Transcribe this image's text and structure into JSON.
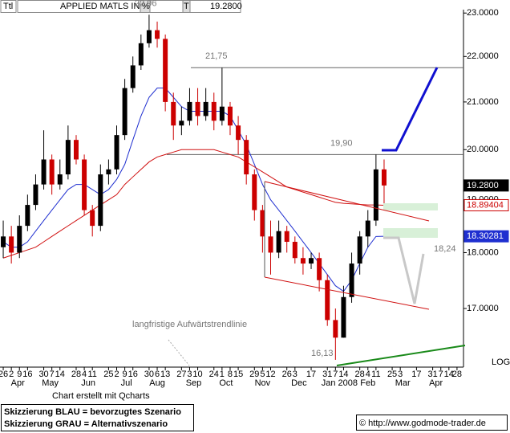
{
  "chart_data": {
    "type": "candlestick",
    "title": "APPLIED MATLS INC",
    "header_fields": [
      "Ttl",
      "%",
      "T"
    ],
    "x": [
      0,
      1,
      2,
      3,
      4,
      5,
      6,
      7,
      8,
      9,
      10,
      11,
      12,
      13,
      14,
      15,
      16,
      17,
      18,
      19,
      20,
      21,
      22,
      23,
      24,
      25,
      26,
      27,
      28,
      29,
      30,
      31,
      32,
      33,
      34,
      35,
      36,
      37,
      38,
      39,
      40,
      41,
      42,
      43,
      44,
      45,
      46,
      47
    ],
    "open": [
      18.1,
      18.3,
      18.0,
      18.5,
      18.9,
      19.3,
      19.8,
      19.3,
      19.5,
      20.2,
      19.8,
      18.8,
      18.5,
      19.5,
      19.6,
      20.3,
      21.3,
      21.8,
      22.3,
      22.6,
      22.4,
      21.0,
      20.5,
      20.6,
      21.0,
      20.7,
      21.0,
      20.6,
      20.9,
      20.5,
      20.2,
      19.5,
      18.8,
      18.3,
      18.0,
      18.4,
      18.2,
      17.9,
      17.8,
      17.9,
      17.5,
      16.8,
      16.5,
      17.2,
      17.8,
      18.3,
      18.6,
      19.6
    ],
    "high": [
      18.6,
      18.5,
      18.7,
      19.1,
      19.5,
      20.4,
      19.9,
      19.8,
      20.5,
      20.3,
      19.9,
      18.9,
      19.7,
      19.8,
      20.5,
      21.5,
      22.0,
      22.5,
      22.96,
      22.8,
      22.5,
      21.2,
      20.9,
      21.3,
      21.3,
      21.3,
      21.2,
      21.75,
      21.0,
      20.7,
      20.3,
      19.6,
      18.9,
      18.6,
      18.6,
      18.5,
      18.3,
      18.1,
      18.0,
      18.0,
      17.6,
      17.0,
      17.4,
      18.0,
      18.4,
      18.8,
      19.9,
      19.8
    ],
    "low": [
      17.9,
      17.8,
      17.9,
      18.4,
      18.8,
      19.2,
      19.1,
      19.2,
      19.4,
      19.7,
      18.7,
      18.3,
      18.4,
      19.3,
      19.5,
      20.2,
      21.2,
      21.7,
      22.2,
      22.2,
      20.8,
      20.2,
      20.3,
      20.5,
      20.5,
      20.6,
      20.4,
      20.5,
      20.3,
      19.9,
      19.3,
      18.6,
      18.0,
      17.6,
      17.9,
      18.0,
      17.8,
      17.6,
      17.7,
      17.3,
      16.7,
      16.13,
      16.5,
      17.1,
      17.6,
      18.1,
      18.5,
      18.9
    ],
    "close": [
      18.3,
      18.0,
      18.5,
      18.9,
      19.3,
      19.8,
      19.3,
      19.5,
      20.2,
      19.8,
      18.8,
      18.5,
      19.5,
      19.6,
      20.3,
      21.3,
      21.8,
      22.3,
      22.6,
      22.4,
      21.0,
      20.5,
      20.6,
      21.0,
      20.7,
      21.0,
      20.6,
      20.9,
      20.5,
      20.2,
      19.5,
      18.8,
      18.3,
      18.0,
      18.4,
      18.2,
      17.9,
      17.8,
      17.9,
      17.5,
      16.8,
      16.5,
      17.2,
      17.8,
      18.3,
      18.6,
      19.6,
      19.28
    ],
    "up_color": "#000000",
    "down_color": "#cc0000",
    "series": [
      {
        "color": "#1f2fd0",
        "values": [
          18.2,
          18.1,
          18.1,
          18.2,
          18.4,
          18.6,
          18.8,
          19.0,
          19.2,
          19.3,
          19.3,
          19.2,
          19.1,
          19.2,
          19.4,
          19.7,
          20.2,
          20.7,
          21.1,
          21.3,
          21.3,
          21.1,
          20.9,
          20.8,
          20.8,
          20.8,
          20.8,
          20.8,
          20.7,
          20.4,
          20.1,
          19.7,
          19.3,
          19.0,
          18.8,
          18.6,
          18.4,
          18.2,
          18.0,
          17.8,
          17.6,
          17.4,
          17.3,
          17.5,
          17.8,
          18.1,
          18.3,
          18.30281
        ]
      },
      {
        "color": "#d01010",
        "values": [
          17.9,
          17.95,
          18.0,
          18.05,
          18.1,
          18.2,
          18.3,
          18.4,
          18.5,
          18.6,
          18.7,
          18.8,
          18.9,
          19.0,
          19.1,
          19.3,
          19.45,
          19.6,
          19.75,
          19.85,
          19.9,
          19.95,
          20.0,
          20.0,
          20.0,
          20.0,
          20.0,
          19.95,
          19.9,
          19.85,
          19.75,
          19.65,
          19.55,
          19.45,
          19.35,
          19.25,
          19.2,
          19.15,
          19.1,
          19.05,
          19.0,
          18.95,
          18.93,
          18.92,
          18.91,
          18.9,
          18.9,
          18.89404
        ]
      }
    ],
    "price_labels": [
      {
        "value": 19.28,
        "label": "19.2800",
        "color": "#000000"
      },
      {
        "value": 18.89404,
        "label": "18.89404",
        "color": "#cc0000"
      },
      {
        "value": 18.30281,
        "label": "18.30281",
        "color": "#1f2fd0"
      }
    ],
    "levels": [
      {
        "value": 22.96,
        "label": "22,96"
      },
      {
        "value": 21.75,
        "label": "21,75"
      },
      {
        "value": 19.9,
        "label": "19,90"
      },
      {
        "value": 16.13,
        "label": "16,13"
      },
      {
        "value": 18.24,
        "label": "18,24"
      }
    ],
    "log_scale": true,
    "scale_label": "LOG",
    "ylim": [
      16.01,
      23.08
    ],
    "yticks": [
      {
        "value": 17,
        "label": "17.0000"
      },
      {
        "value": 18,
        "label": "18.0000"
      },
      {
        "value": 19,
        "label": "19.0000"
      },
      {
        "value": 20,
        "label": "20.0000"
      },
      {
        "value": 21,
        "label": "21.0000"
      },
      {
        "value": 22,
        "label": "22.0000"
      },
      {
        "value": 23,
        "label": "23.0000"
      }
    ],
    "xlim": [
      -0.4,
      56.8
    ],
    "xticks": [
      {
        "value": 0,
        "label": "26"
      },
      {
        "value": 1,
        "label": "2"
      },
      {
        "value": 2,
        "label": "9"
      },
      {
        "value": 3,
        "label": "16"
      },
      {
        "value": 5,
        "label": "30"
      },
      {
        "value": 6,
        "label": "7"
      },
      {
        "value": 7,
        "label": "14"
      },
      {
        "value": 9,
        "label": "28"
      },
      {
        "value": 10,
        "label": "4"
      },
      {
        "value": 11,
        "label": "11"
      },
      {
        "value": 13,
        "label": "25"
      },
      {
        "value": 14,
        "label": "2"
      },
      {
        "value": 15,
        "label": "9"
      },
      {
        "value": 16,
        "label": "16"
      },
      {
        "value": 18,
        "label": "30"
      },
      {
        "value": 19,
        "label": "6"
      },
      {
        "value": 20,
        "label": "13"
      },
      {
        "value": 22,
        "label": "27"
      },
      {
        "value": 23,
        "label": "3"
      },
      {
        "value": 24,
        "label": "10"
      },
      {
        "value": 26,
        "label": "24"
      },
      {
        "value": 27,
        "label": "1"
      },
      {
        "value": 28,
        "label": "8"
      },
      {
        "value": 29,
        "label": "15"
      },
      {
        "value": 31,
        "label": "29"
      },
      {
        "value": 32,
        "label": "5"
      },
      {
        "value": 33,
        "label": "12"
      },
      {
        "value": 35,
        "label": "26"
      },
      {
        "value": 36,
        "label": "3"
      },
      {
        "value": 38,
        "label": "17"
      },
      {
        "value": 40,
        "label": "31"
      },
      {
        "value": 41,
        "label": "7"
      },
      {
        "value": 42,
        "label": "14"
      },
      {
        "value": 44,
        "label": "28"
      },
      {
        "value": 45,
        "label": "4"
      },
      {
        "value": 46,
        "label": "11"
      },
      {
        "value": 48,
        "label": "25"
      },
      {
        "value": 49,
        "label": "3"
      },
      {
        "value": 51,
        "label": "17"
      },
      {
        "value": 53,
        "label": "31"
      },
      {
        "value": 54,
        "label": "7"
      },
      {
        "value": 55,
        "label": "14"
      },
      {
        "value": 56,
        "label": "28"
      }
    ],
    "month_ticks": [
      {
        "value": 1.8,
        "label": "Apr"
      },
      {
        "value": 5.8,
        "label": "May"
      },
      {
        "value": 10.5,
        "label": "Jun"
      },
      {
        "value": 15.2,
        "label": "Jul"
      },
      {
        "value": 19,
        "label": "Aug"
      },
      {
        "value": 23.5,
        "label": "Sep"
      },
      {
        "value": 27.5,
        "label": "Oct"
      },
      {
        "value": 32,
        "label": "Nov"
      },
      {
        "value": 36.5,
        "label": "Dec"
      },
      {
        "value": 41.5,
        "label": "Jan 2008"
      },
      {
        "value": 45,
        "label": "Feb"
      },
      {
        "value": 49.3,
        "label": "Mar"
      },
      {
        "value": 53.4,
        "label": "Apr"
      }
    ],
    "trendline_note": "langfristige Aufwärtstrendlinie",
    "credit": "Chart erstellt mit Qcharts",
    "legend_notes": [
      "Skizzierung BLAU = bevorzugtes Szenario",
      "Skizzierung GRAU = Alternativszenario"
    ],
    "source": "© http://www.godmode-trader.de"
  }
}
